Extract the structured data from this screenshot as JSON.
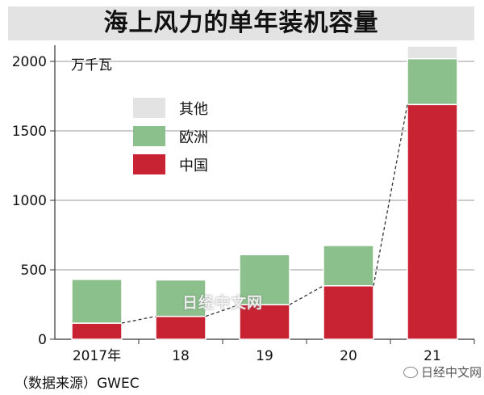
{
  "header": {
    "title": "海上风力的单年装机容量"
  },
  "unit_label": "万千瓦",
  "source_note": "（数据来源）GWEC",
  "watermark": "日经中文网",
  "account": {
    "icon": "wechat-icon",
    "name": "日经中文网"
  },
  "legend": [
    {
      "label": "其他",
      "color": "#e3e3e3"
    },
    {
      "label": "欧洲",
      "color": "#8bbf8b"
    },
    {
      "label": "中国",
      "color": "#c82333"
    }
  ],
  "chart_data": {
    "type": "bar",
    "stacked": true,
    "title": "海上风力的单年装机容量",
    "ylabel": "万千瓦",
    "xlabel": "",
    "ylim": [
      0,
      2000
    ],
    "yticks": [
      0,
      500,
      1000,
      1500,
      2000
    ],
    "grid": true,
    "legend_position": "top-left",
    "categories": [
      "2017年",
      "18",
      "19",
      "20",
      "21"
    ],
    "series": [
      {
        "name": "中国",
        "color": "#c82333",
        "values": [
          116,
          165,
          249,
          385,
          1690
        ]
      },
      {
        "name": "欧洲",
        "color": "#8bbf8b",
        "values": [
          315,
          262,
          360,
          290,
          330
        ]
      },
      {
        "name": "其他",
        "color": "#e3e3e3",
        "values": [
          0,
          0,
          0,
          0,
          90
        ]
      }
    ],
    "annotation": "dashed line connecting China segment tops"
  }
}
